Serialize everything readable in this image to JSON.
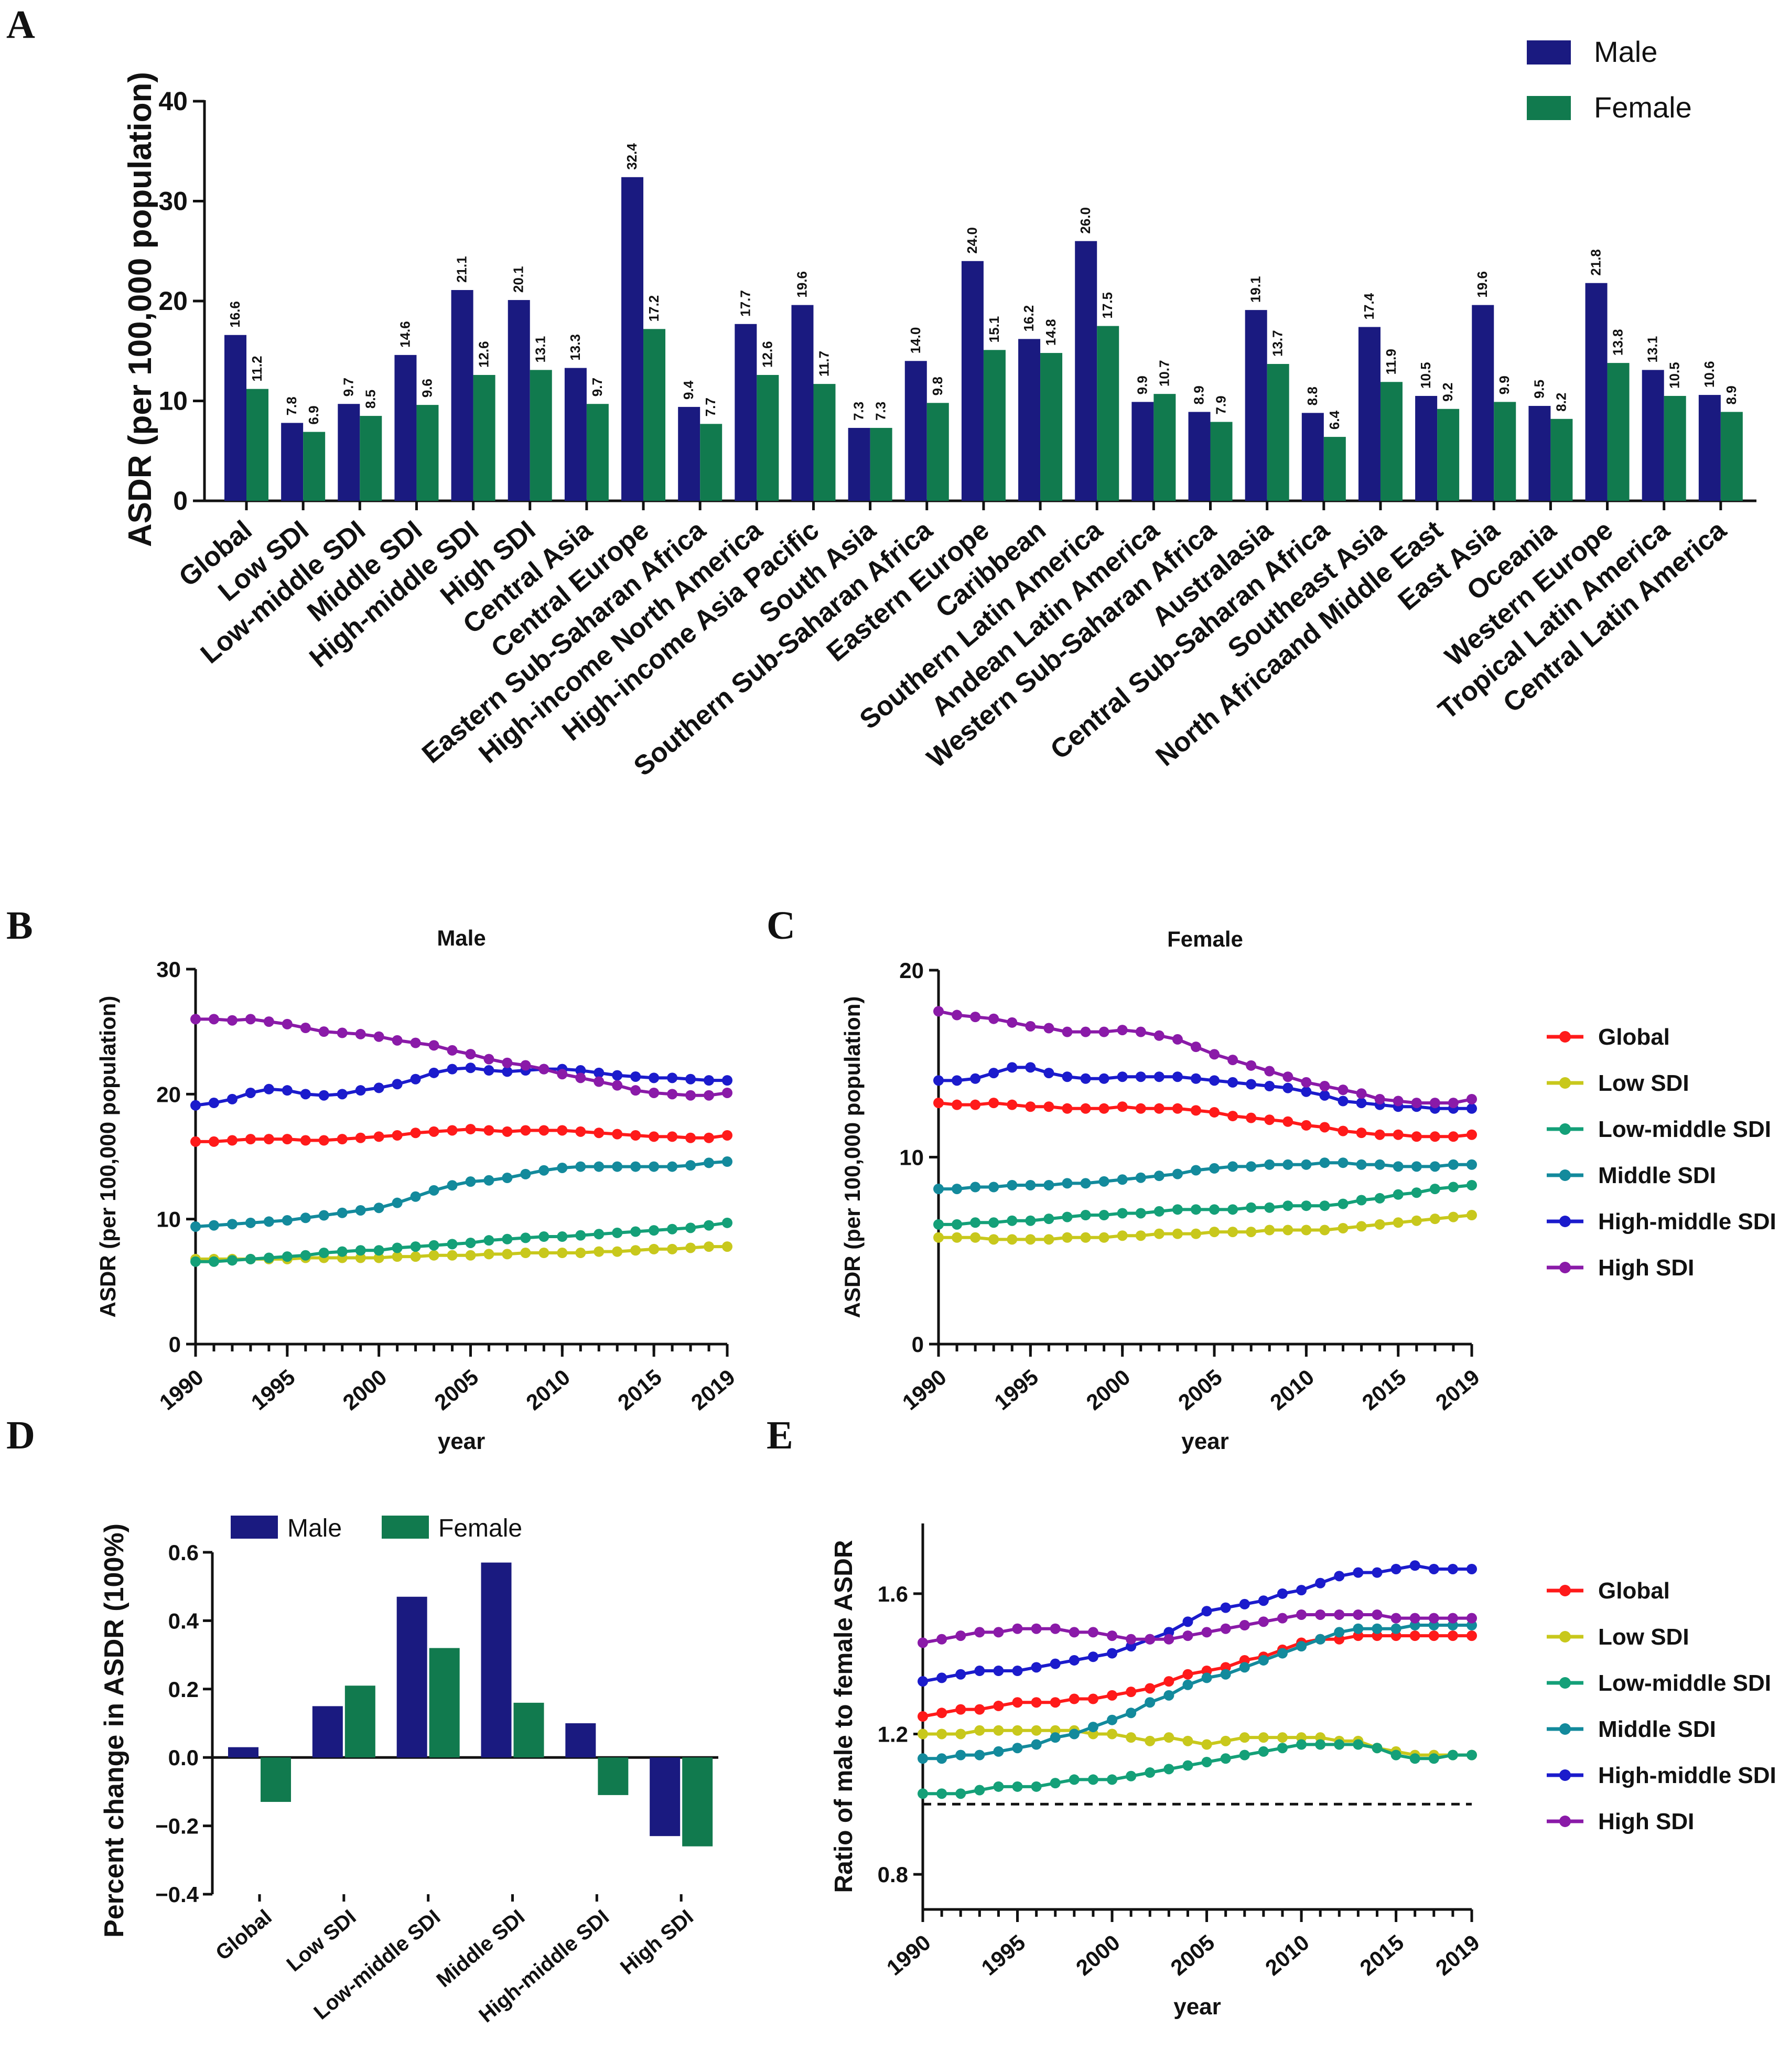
{
  "colors": {
    "male": "#1a1a80",
    "female": "#117a4e",
    "Global": "#ff1a1a",
    "Low SDI": "#c8c81c",
    "Low-middle SDI": "#14a078",
    "Middle SDI": "#138a9c",
    "High-middle SDI": "#1b1bcc",
    "High SDI": "#8a1aa8"
  },
  "chart_data": [
    {
      "panel": "A",
      "type": "bar",
      "ylabel": "ASDR (per 100,000 population)",
      "ylim": [
        0,
        40
      ],
      "yticks": [
        0,
        10,
        20,
        30,
        40
      ],
      "legend": [
        "Male",
        "Female"
      ],
      "legend_position": "top-right",
      "categories": [
        "Global",
        "Low SDI",
        "Low-middle SDI",
        "Middle SDI",
        "High-middle SDI",
        "High SDI",
        "Central Asia",
        "Central Europe",
        "Eastern Sub-Saharan Africa",
        "High-income North America",
        "High-income Asia Pacific",
        "South Asia",
        "Southern Sub-Saharan Africa",
        "Eastern Europe",
        "Caribbean",
        "Southern Latin America",
        "Andean Latin America",
        "Western Sub-Saharan Africa",
        "Australasia",
        "Central Sub-Saharan Africa",
        "Southeast Asia",
        "North Africaand Middle East",
        "East Asia",
        "Oceania",
        "Western Europe",
        "Tropical Latin America",
        "Central Latin America"
      ],
      "series": [
        {
          "name": "Male",
          "values": [
            16.6,
            7.8,
            9.7,
            14.6,
            21.1,
            20.1,
            13.3,
            32.4,
            9.4,
            17.7,
            19.6,
            7.3,
            14.0,
            24.0,
            16.2,
            26.0,
            9.9,
            8.9,
            19.1,
            8.8,
            17.4,
            10.5,
            19.6,
            9.5,
            21.8,
            13.1,
            10.6
          ]
        },
        {
          "name": "Female",
          "values": [
            11.2,
            6.9,
            8.5,
            9.6,
            12.6,
            13.1,
            9.7,
            17.2,
            7.7,
            12.6,
            11.7,
            7.3,
            9.8,
            15.1,
            14.8,
            17.5,
            10.7,
            7.9,
            13.7,
            6.4,
            11.9,
            9.2,
            9.9,
            8.2,
            13.8,
            10.5,
            8.9
          ]
        }
      ],
      "data_labels": {
        "male": [
          "16.6",
          "7.8",
          "9.7",
          "14.6",
          "21.1",
          "20.1",
          "13.3",
          "32.4",
          "9.4",
          "17.7",
          "19.6",
          "7.3",
          "14.0",
          "24.0",
          "16.2",
          "26.0",
          "9.9",
          "8.9",
          "19.1",
          "8.8",
          "17.4",
          "10.5",
          "19.6",
          "9.5",
          "21.8",
          "13.1",
          "10.6"
        ],
        "female": [
          "11.2",
          "6.9",
          "8.5",
          "9.6",
          "12.6",
          "13.1",
          "9.7",
          "17.2",
          "7.7",
          "12.6",
          "11.7",
          "7.3",
          "9.8",
          "15.1",
          "14.8",
          "17.5",
          "10.7",
          "7.9",
          "13.7",
          "6.4",
          "11.9",
          "9.2",
          "9.9",
          "8.2",
          "13.8",
          "10.5",
          "8.9"
        ]
      }
    },
    {
      "panel": "B",
      "type": "line",
      "title": "Male",
      "xlabel": "year",
      "ylabel": "ASDR (per 100,000 population)",
      "xlim": [
        1990,
        2019
      ],
      "ylim": [
        0,
        30
      ],
      "xticks": [
        "1990",
        "1995",
        "2000",
        "2005",
        "2010",
        "2015",
        "2019"
      ],
      "yticks": [
        "0",
        "10",
        "20",
        "30"
      ],
      "series": [
        {
          "name": "Global",
          "values": [
            16.2,
            16.2,
            16.3,
            16.4,
            16.4,
            16.4,
            16.3,
            16.3,
            16.4,
            16.5,
            16.6,
            16.7,
            16.9,
            17.0,
            17.1,
            17.2,
            17.1,
            17.0,
            17.1,
            17.1,
            17.1,
            17.0,
            16.9,
            16.8,
            16.7,
            16.6,
            16.6,
            16.5,
            16.5,
            16.7
          ]
        },
        {
          "name": "Low SDI",
          "values": [
            6.8,
            6.8,
            6.8,
            6.8,
            6.8,
            6.8,
            6.9,
            6.9,
            6.9,
            6.9,
            6.9,
            7.0,
            7.0,
            7.1,
            7.1,
            7.1,
            7.2,
            7.2,
            7.3,
            7.3,
            7.3,
            7.3,
            7.4,
            7.4,
            7.5,
            7.6,
            7.6,
            7.7,
            7.8,
            7.8
          ]
        },
        {
          "name": "Low-middle SDI",
          "values": [
            6.6,
            6.6,
            6.7,
            6.8,
            6.9,
            7.0,
            7.1,
            7.3,
            7.4,
            7.5,
            7.5,
            7.7,
            7.8,
            7.9,
            8.0,
            8.1,
            8.3,
            8.4,
            8.5,
            8.6,
            8.6,
            8.7,
            8.8,
            8.9,
            9.0,
            9.1,
            9.2,
            9.3,
            9.5,
            9.7
          ]
        },
        {
          "name": "Middle SDI",
          "values": [
            9.4,
            9.5,
            9.6,
            9.7,
            9.8,
            9.9,
            10.1,
            10.3,
            10.5,
            10.7,
            10.9,
            11.3,
            11.8,
            12.3,
            12.7,
            13.0,
            13.1,
            13.3,
            13.6,
            13.9,
            14.1,
            14.2,
            14.2,
            14.2,
            14.2,
            14.2,
            14.2,
            14.3,
            14.5,
            14.6
          ]
        },
        {
          "name": "High-middle SDI",
          "values": [
            19.1,
            19.3,
            19.6,
            20.1,
            20.4,
            20.3,
            20.0,
            19.9,
            20.0,
            20.3,
            20.5,
            20.8,
            21.2,
            21.7,
            22.0,
            22.1,
            21.9,
            21.8,
            21.9,
            22.0,
            22.0,
            21.9,
            21.7,
            21.5,
            21.4,
            21.3,
            21.3,
            21.2,
            21.1,
            21.1
          ]
        },
        {
          "name": "High SDI",
          "values": [
            26.0,
            26.0,
            25.9,
            26.0,
            25.8,
            25.6,
            25.3,
            25.0,
            24.9,
            24.8,
            24.6,
            24.3,
            24.1,
            23.9,
            23.5,
            23.2,
            22.8,
            22.5,
            22.3,
            22.0,
            21.6,
            21.3,
            21.0,
            20.7,
            20.3,
            20.1,
            20.0,
            19.9,
            19.9,
            20.1
          ]
        }
      ]
    },
    {
      "panel": "C",
      "type": "line",
      "title": "Female",
      "xlabel": "year",
      "ylabel": "ASDR (per 100,000 population)",
      "xlim": [
        1990,
        2019
      ],
      "ylim": [
        0,
        20
      ],
      "xticks": [
        "1990",
        "1995",
        "2000",
        "2005",
        "2010",
        "2015",
        "2019"
      ],
      "yticks": [
        "0",
        "10",
        "20"
      ],
      "legend_position": "right",
      "series": [
        {
          "name": "Global",
          "values": [
            12.9,
            12.8,
            12.8,
            12.9,
            12.8,
            12.7,
            12.7,
            12.6,
            12.6,
            12.6,
            12.7,
            12.6,
            12.6,
            12.6,
            12.5,
            12.4,
            12.2,
            12.1,
            12.0,
            11.9,
            11.7,
            11.6,
            11.4,
            11.3,
            11.2,
            11.2,
            11.1,
            11.1,
            11.1,
            11.2
          ]
        },
        {
          "name": "Low SDI",
          "values": [
            5.7,
            5.7,
            5.7,
            5.6,
            5.6,
            5.6,
            5.6,
            5.7,
            5.7,
            5.7,
            5.8,
            5.8,
            5.9,
            5.9,
            5.9,
            6.0,
            6.0,
            6.0,
            6.1,
            6.1,
            6.1,
            6.1,
            6.2,
            6.3,
            6.4,
            6.5,
            6.6,
            6.7,
            6.8,
            6.9
          ]
        },
        {
          "name": "Low-middle SDI",
          "values": [
            6.4,
            6.4,
            6.5,
            6.5,
            6.6,
            6.6,
            6.7,
            6.8,
            6.9,
            6.9,
            7.0,
            7.0,
            7.1,
            7.2,
            7.2,
            7.2,
            7.2,
            7.3,
            7.3,
            7.4,
            7.4,
            7.4,
            7.5,
            7.7,
            7.8,
            8.0,
            8.1,
            8.3,
            8.4,
            8.5
          ]
        },
        {
          "name": "Middle SDI",
          "values": [
            8.3,
            8.3,
            8.4,
            8.4,
            8.5,
            8.5,
            8.5,
            8.6,
            8.6,
            8.7,
            8.8,
            8.9,
            9.0,
            9.1,
            9.3,
            9.4,
            9.5,
            9.5,
            9.6,
            9.6,
            9.6,
            9.7,
            9.7,
            9.6,
            9.6,
            9.5,
            9.5,
            9.5,
            9.6,
            9.6
          ]
        },
        {
          "name": "High-middle SDI",
          "values": [
            14.1,
            14.1,
            14.2,
            14.5,
            14.8,
            14.8,
            14.5,
            14.3,
            14.2,
            14.2,
            14.3,
            14.3,
            14.3,
            14.3,
            14.2,
            14.1,
            14.0,
            13.9,
            13.8,
            13.7,
            13.5,
            13.3,
            13.0,
            12.9,
            12.8,
            12.7,
            12.7,
            12.6,
            12.6,
            12.6
          ]
        },
        {
          "name": "High SDI",
          "values": [
            17.8,
            17.6,
            17.5,
            17.4,
            17.2,
            17.0,
            16.9,
            16.7,
            16.7,
            16.7,
            16.8,
            16.7,
            16.5,
            16.3,
            15.9,
            15.5,
            15.2,
            14.9,
            14.6,
            14.3,
            14.0,
            13.8,
            13.6,
            13.4,
            13.1,
            13.0,
            12.9,
            12.9,
            12.9,
            13.1
          ]
        }
      ]
    },
    {
      "panel": "D",
      "type": "bar",
      "ylabel": "Percent change in ASDR (100%)",
      "ylim": [
        -0.4,
        0.6
      ],
      "yticks": [
        "−0.4",
        "−0.2",
        "0.0",
        "0.2",
        "0.4",
        "0.6"
      ],
      "legend": [
        "Male",
        "Female"
      ],
      "legend_position": "top",
      "categories": [
        "Global",
        "Low SDI",
        "Low-middle SDI",
        "Middle SDI",
        "High-middle SDI",
        "High SDI"
      ],
      "series": [
        {
          "name": "Male",
          "values": [
            0.03,
            0.15,
            0.47,
            0.57,
            0.1,
            -0.23
          ]
        },
        {
          "name": "Female",
          "values": [
            -0.13,
            0.21,
            0.32,
            0.16,
            -0.11,
            -0.26
          ]
        }
      ]
    },
    {
      "panel": "E",
      "type": "line",
      "xlabel": "year",
      "ylabel": "Ratio of male to female ASDR",
      "xlim": [
        1990,
        2019
      ],
      "ylim": [
        0.7,
        1.8
      ],
      "xticks": [
        "1990",
        "1995",
        "2000",
        "2005",
        "2010",
        "2015",
        "2019"
      ],
      "yticks": [
        "0.8",
        "1.2",
        "1.6"
      ],
      "reference_line": 1.0,
      "legend_position": "right",
      "series": [
        {
          "name": "Global",
          "values": [
            1.25,
            1.26,
            1.27,
            1.27,
            1.28,
            1.29,
            1.29,
            1.29,
            1.3,
            1.3,
            1.31,
            1.32,
            1.33,
            1.35,
            1.37,
            1.38,
            1.39,
            1.41,
            1.42,
            1.44,
            1.46,
            1.47,
            1.47,
            1.48,
            1.48,
            1.48,
            1.48,
            1.48,
            1.48,
            1.48
          ]
        },
        {
          "name": "Low SDI",
          "values": [
            1.2,
            1.2,
            1.2,
            1.21,
            1.21,
            1.21,
            1.21,
            1.21,
            1.21,
            1.2,
            1.2,
            1.19,
            1.18,
            1.19,
            1.18,
            1.17,
            1.18,
            1.19,
            1.19,
            1.19,
            1.19,
            1.19,
            1.18,
            1.18,
            1.16,
            1.15,
            1.14,
            1.14,
            1.14,
            1.14
          ]
        },
        {
          "name": "Low-middle SDI",
          "values": [
            1.03,
            1.03,
            1.03,
            1.04,
            1.05,
            1.05,
            1.05,
            1.06,
            1.07,
            1.07,
            1.07,
            1.08,
            1.09,
            1.1,
            1.11,
            1.12,
            1.13,
            1.14,
            1.15,
            1.16,
            1.17,
            1.17,
            1.17,
            1.17,
            1.16,
            1.14,
            1.13,
            1.13,
            1.14,
            1.14
          ]
        },
        {
          "name": "Middle SDI",
          "values": [
            1.13,
            1.13,
            1.14,
            1.14,
            1.15,
            1.16,
            1.17,
            1.19,
            1.2,
            1.22,
            1.24,
            1.26,
            1.29,
            1.31,
            1.34,
            1.36,
            1.37,
            1.39,
            1.41,
            1.43,
            1.45,
            1.47,
            1.49,
            1.5,
            1.5,
            1.5,
            1.51,
            1.51,
            1.51,
            1.51
          ]
        },
        {
          "name": "High-middle SDI",
          "values": [
            1.35,
            1.36,
            1.37,
            1.38,
            1.38,
            1.38,
            1.39,
            1.4,
            1.41,
            1.42,
            1.43,
            1.45,
            1.47,
            1.49,
            1.52,
            1.55,
            1.56,
            1.57,
            1.58,
            1.6,
            1.61,
            1.63,
            1.65,
            1.66,
            1.66,
            1.67,
            1.68,
            1.67,
            1.67,
            1.67
          ]
        },
        {
          "name": "High SDI",
          "values": [
            1.46,
            1.47,
            1.48,
            1.49,
            1.49,
            1.5,
            1.5,
            1.5,
            1.49,
            1.49,
            1.48,
            1.47,
            1.47,
            1.47,
            1.48,
            1.49,
            1.5,
            1.51,
            1.52,
            1.53,
            1.54,
            1.54,
            1.54,
            1.54,
            1.54,
            1.53,
            1.53,
            1.53,
            1.53,
            1.53
          ]
        }
      ]
    }
  ]
}
